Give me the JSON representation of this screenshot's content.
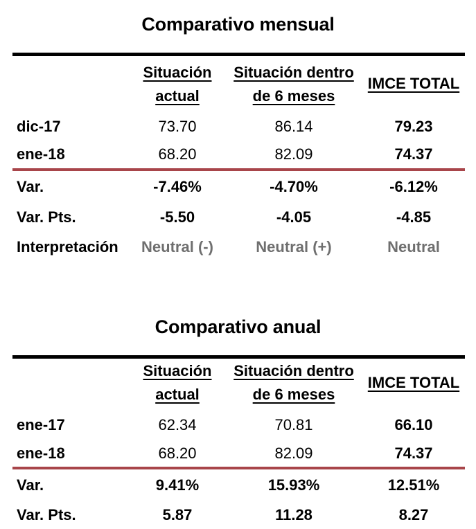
{
  "monthly": {
    "title": "Comparativo mensual",
    "headers": {
      "col1_line1": "Situación",
      "col1_line2": "actual",
      "col2_line1": "Situación dentro",
      "col2_line2": "de 6 meses",
      "col3": "IMCE TOTAL"
    },
    "rows": [
      {
        "label": "dic-17",
        "c1": "73.70",
        "c2": "86.14",
        "c3": "79.23"
      },
      {
        "label": "ene-18",
        "c1": "68.20",
        "c2": "82.09",
        "c3": "74.37"
      },
      {
        "label": "Var.",
        "c1": "-7.46%",
        "c2": "-4.70%",
        "c3": "-6.12%"
      },
      {
        "label": "Var. Pts.",
        "c1": "-5.50",
        "c2": "-4.05",
        "c3": "-4.85"
      },
      {
        "label": "Interpretación",
        "c1": "Neutral (-)",
        "c2": "Neutral (+)",
        "c3": "Neutral"
      }
    ]
  },
  "annual": {
    "title": "Comparativo anual",
    "headers": {
      "col1_line1": "Situación",
      "col1_line2": "actual",
      "col2_line1": "Situación dentro",
      "col2_line2": "de 6 meses",
      "col3": "IMCE TOTAL"
    },
    "rows": [
      {
        "label": "ene-17",
        "c1": "62.34",
        "c2": "70.81",
        "c3": "66.10"
      },
      {
        "label": "ene-18",
        "c1": "68.20",
        "c2": "82.09",
        "c3": "74.37"
      },
      {
        "label": "Var.",
        "c1": "9.41%",
        "c2": "15.93%",
        "c3": "12.51%"
      },
      {
        "label": "Var. Pts.",
        "c1": "5.87",
        "c2": "11.28",
        "c3": "8.27"
      }
    ]
  },
  "colors": {
    "separator": "#a8454a",
    "interpretation_text": "#6f6f6f"
  }
}
